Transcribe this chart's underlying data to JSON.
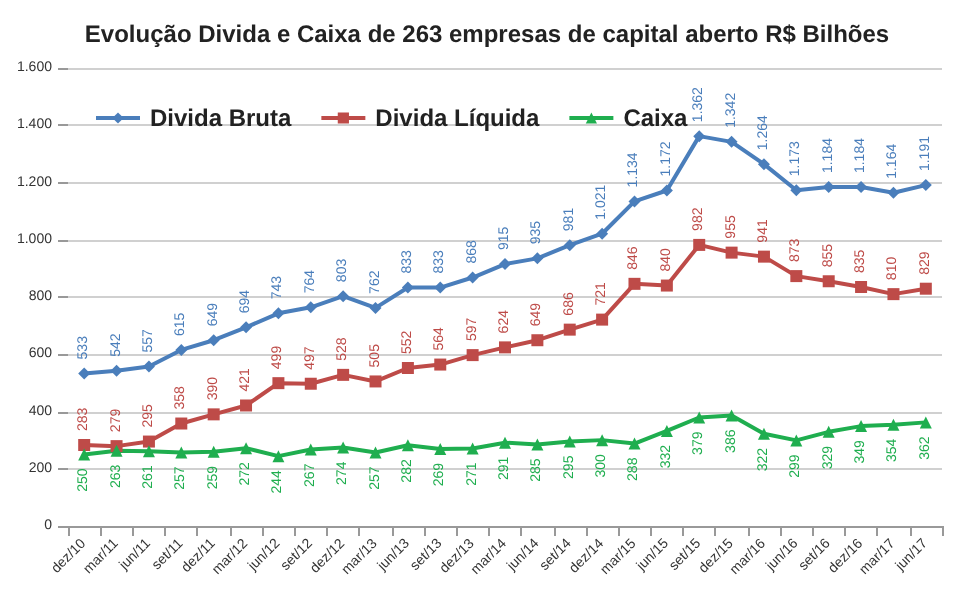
{
  "chart_data": {
    "type": "line",
    "title": "Evolução Divida e Caixa de 263 empresas de capital aberto R$ Bilhões",
    "categories": [
      "dez/10",
      "mar/11",
      "jun/11",
      "set/11",
      "dez/11",
      "mar/12",
      "jun/12",
      "set/12",
      "dez/12",
      "mar/13",
      "jun/13",
      "set/13",
      "dez/13",
      "mar/14",
      "jun/14",
      "set/14",
      "dez/14",
      "mar/15",
      "jun/15",
      "set/15",
      "dez/15",
      "mar/16",
      "jun/16",
      "set/16",
      "dez/16",
      "mar/17",
      "jun/17"
    ],
    "series": [
      {
        "name": "Divida Bruta",
        "color": "#4a7ebb",
        "marker": "diamond",
        "values": [
          533,
          542,
          557,
          615,
          649,
          694,
          743,
          764,
          803,
          762,
          833,
          833,
          868,
          915,
          935,
          981,
          1021,
          1134,
          1172,
          1362,
          1342,
          1264,
          1173,
          1184,
          1184,
          1164,
          1191
        ],
        "value_labels": [
          "533",
          "542",
          "557",
          "615",
          "649",
          "694",
          "743",
          "764",
          "803",
          "762",
          "833",
          "833",
          "868",
          "915",
          "935",
          "981",
          "1.021",
          "1.134",
          "1.172",
          "1.362",
          "1.342",
          "1.264",
          "1.173",
          "1.184",
          "1.184",
          "1.164",
          "1.191"
        ]
      },
      {
        "name": "Divida Líquida",
        "color": "#be4b48",
        "marker": "square",
        "values": [
          283,
          279,
          295,
          358,
          390,
          421,
          499,
          497,
          528,
          505,
          552,
          564,
          597,
          624,
          649,
          686,
          721,
          846,
          840,
          982,
          955,
          941,
          873,
          855,
          835,
          810,
          829
        ],
        "value_labels": [
          "283",
          "279",
          "295",
          "358",
          "390",
          "421",
          "499",
          "497",
          "528",
          "505",
          "552",
          "564",
          "597",
          "624",
          "649",
          "686",
          "721",
          "846",
          "840",
          "982",
          "955",
          "941",
          "873",
          "855",
          "835",
          "810",
          "829"
        ]
      },
      {
        "name": "Caixa",
        "color": "#1fae4f",
        "marker": "triangle",
        "values": [
          250,
          263,
          261,
          257,
          259,
          272,
          244,
          267,
          274,
          257,
          282,
          269,
          271,
          291,
          285,
          295,
          300,
          288,
          332,
          379,
          386,
          322,
          299,
          329,
          349,
          354,
          362
        ],
        "value_labels": [
          "250",
          "263",
          "261",
          "257",
          "259",
          "272",
          "244",
          "267",
          "274",
          "257",
          "282",
          "269",
          "271",
          "291",
          "285",
          "295",
          "300",
          "288",
          "332",
          "379",
          "386",
          "322",
          "299",
          "329",
          "349",
          "354",
          "362"
        ]
      }
    ],
    "ylim": [
      0,
      1600
    ],
    "yticks": [
      0,
      200,
      400,
      600,
      800,
      {
        "value": 1000,
        "label": "1.000"
      },
      {
        "value": 1200,
        "label": "1.200"
      },
      {
        "value": 1400,
        "label": "1.400"
      },
      {
        "value": 1600,
        "label": "1.600"
      }
    ],
    "grid": "y",
    "legend": "top left"
  }
}
